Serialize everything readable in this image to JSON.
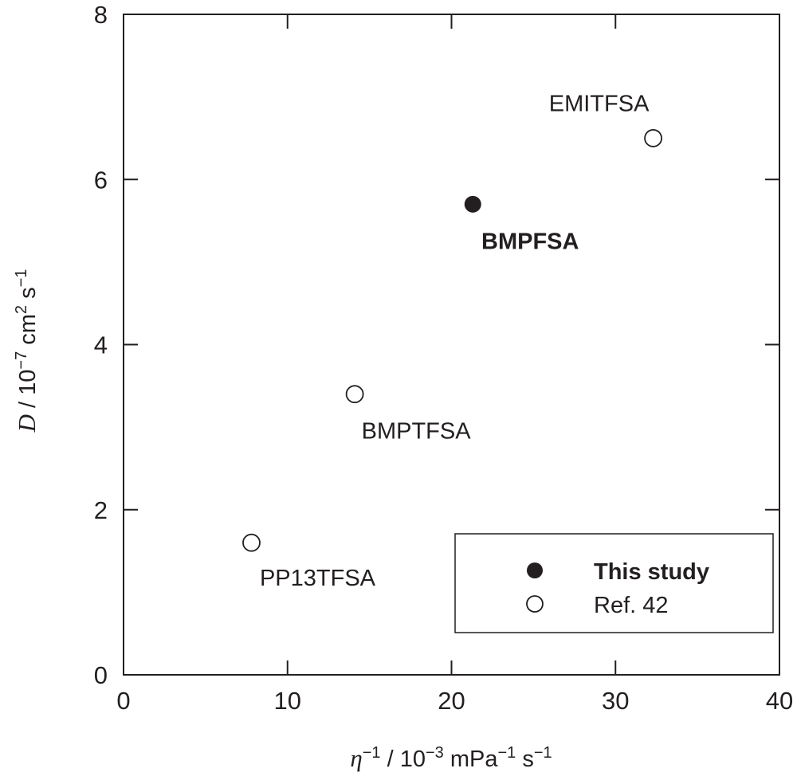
{
  "chart_data": {
    "type": "scatter",
    "xlabel": {
      "symbol": "η",
      "sup1": "−1",
      "rest": " / 10",
      "sup2": "−3",
      "rest2": " mPa",
      "sup3": "−1",
      "rest3": " s",
      "sup4": "−1"
    },
    "ylabel": {
      "symbol": "D",
      "rest": " / 10",
      "sup1": "−7",
      "rest2": " cm",
      "sup2": "2",
      "rest3": " s",
      "sup3": "−1"
    },
    "xlim": [
      0,
      40
    ],
    "ylim": [
      0,
      8
    ],
    "xticks": [
      0,
      10,
      20,
      30,
      40
    ],
    "yticks": [
      0,
      2,
      4,
      6,
      8
    ],
    "grid": false,
    "legend_position": "bottom-right",
    "series": [
      {
        "name": "This study",
        "marker": "filled-circle",
        "points": [
          {
            "label": "BMPFSA",
            "x": 21.3,
            "y": 5.7
          }
        ]
      },
      {
        "name": "Ref. 42",
        "marker": "open-circle",
        "points": [
          {
            "label": "EMITFSA",
            "x": 32.3,
            "y": 6.5
          },
          {
            "label": "BMPTFSA",
            "x": 14.1,
            "y": 3.4
          },
          {
            "label": "PP13TFSA",
            "x": 7.8,
            "y": 1.6
          }
        ]
      }
    ]
  },
  "colors": {
    "ink": "#231f20",
    "background": "#ffffff"
  }
}
